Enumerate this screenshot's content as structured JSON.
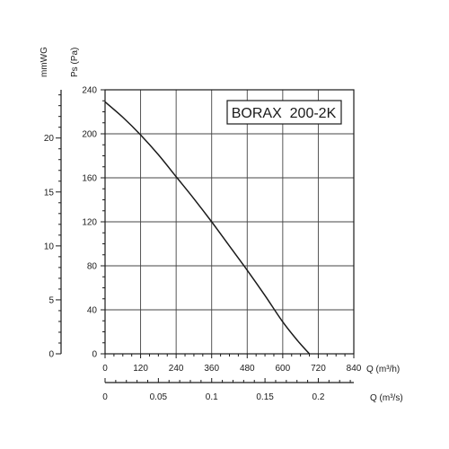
{
  "chart_data": {
    "type": "line",
    "title": "BORAX  200-2K",
    "x_axis": {
      "label": "Q (m³/h)",
      "min": 0,
      "max": 840,
      "ticks": [
        "0",
        "120",
        "240",
        "360",
        "480",
        "600",
        "720",
        "840"
      ],
      "grid": true
    },
    "x2_axis": {
      "label": "Q (m³/s)",
      "min": 0,
      "max": 0.2333,
      "ticks": [
        {
          "value": 0,
          "label": "0"
        },
        {
          "value": 0.05,
          "label": "0.05"
        },
        {
          "value": 0.1,
          "label": "0.1"
        },
        {
          "value": 0.15,
          "label": "0.15"
        },
        {
          "value": 0.2,
          "label": "0.2"
        }
      ]
    },
    "y_axis": {
      "label": "Ps (Pa)",
      "min": 0,
      "max": 240,
      "ticks": [
        "0",
        "40",
        "80",
        "120",
        "160",
        "200",
        "240"
      ],
      "grid": true
    },
    "y2_axis": {
      "label": "mmWG",
      "min": 0,
      "max": 24.47,
      "ticks": [
        {
          "value": 0,
          "label": "0"
        },
        {
          "value": 5,
          "label": "5"
        },
        {
          "value": 10,
          "label": "10"
        },
        {
          "value": 15,
          "label": "15"
        },
        {
          "value": 20,
          "label": "20"
        }
      ]
    },
    "series": [
      {
        "x": [
          0,
          60,
          120,
          180,
          240,
          300,
          360,
          420,
          480,
          540,
          600,
          650,
          690
        ],
        "y": [
          229,
          215,
          199,
          181,
          161,
          141,
          120,
          98,
          76,
          53,
          29,
          12,
          0
        ]
      }
    ],
    "colors": {
      "curve": "#1a1a1a",
      "grid": "#444444",
      "axis": "#1a1a1a"
    }
  }
}
